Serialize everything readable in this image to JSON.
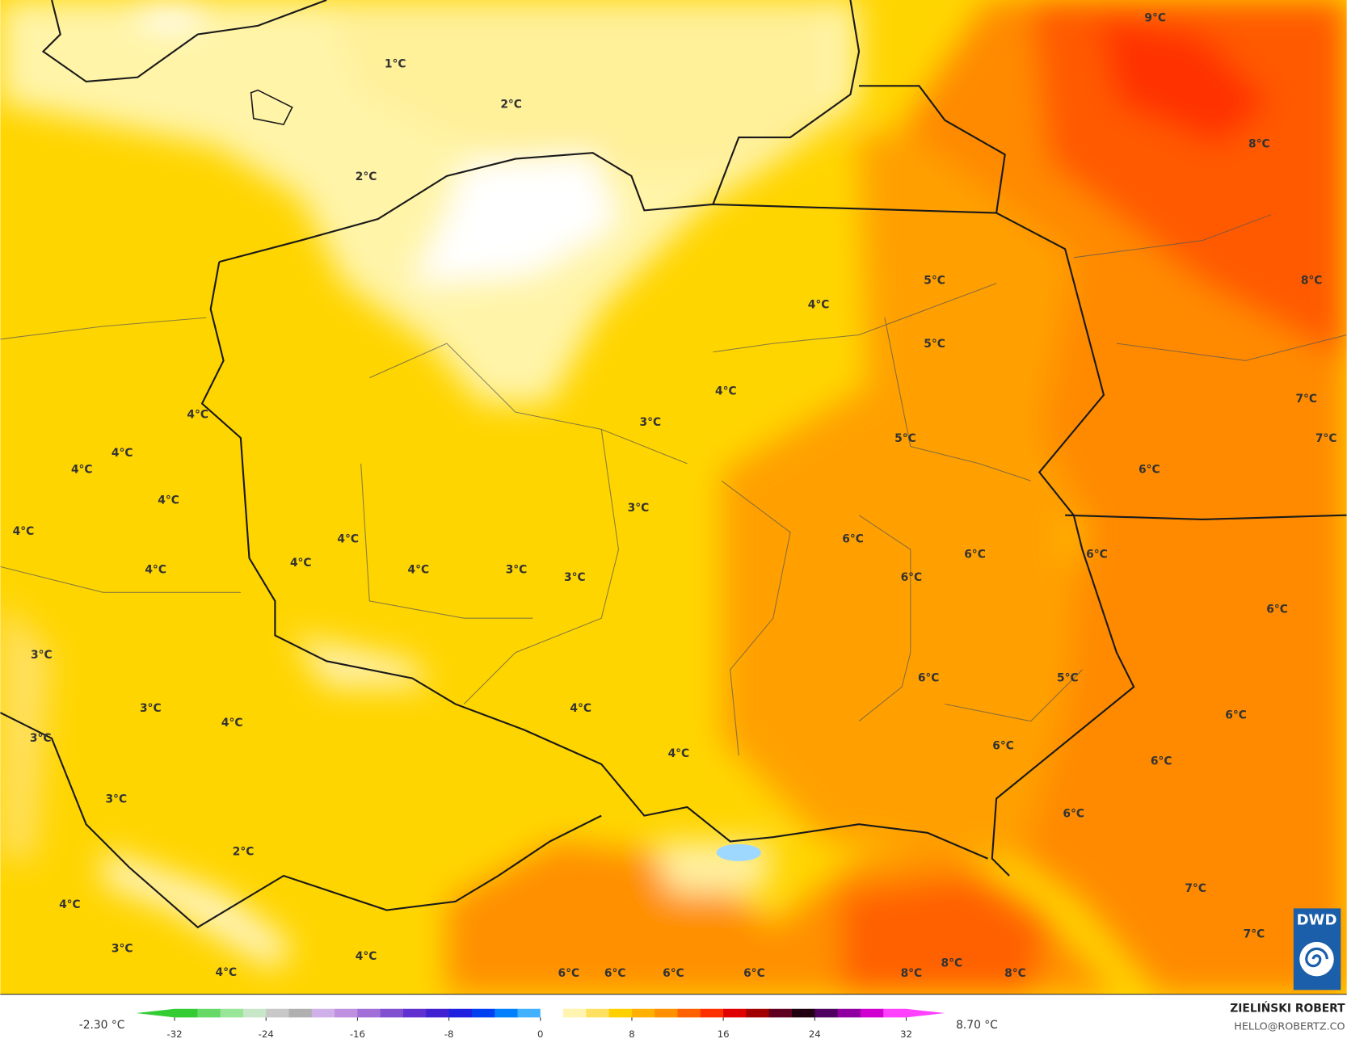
{
  "map": {
    "labels": [
      "1°C",
      "2°C",
      "2°C",
      "5°C",
      "4°C",
      "5°C",
      "4°C",
      "3°C",
      "5°C",
      "4°C",
      "4°C",
      "4°C",
      "4°C",
      "4°C",
      "4°C",
      "4°C",
      "4°C",
      "4°C",
      "3°C",
      "3°C",
      "3°C",
      "6°C",
      "6°C",
      "6°C",
      "9°C",
      "8°C",
      "8°C",
      "7°C",
      "7°C",
      "6°C",
      "6°C",
      "6°C",
      "3°C",
      "3°C",
      "4°C",
      "3°C",
      "4°C",
      "6°C",
      "5°C",
      "6°C",
      "6°C",
      "4°C",
      "6°C",
      "3°C",
      "6°C",
      "2°C",
      "7°C",
      "4°C",
      "7°C",
      "3°C",
      "4°C",
      "4°C",
      "6°C",
      "6°C",
      "6°C",
      "6°C",
      "8°C",
      "8°C",
      "8°C"
    ],
    "logo": "DWD"
  },
  "colorbar": {
    "min_label": "-2.30 °C",
    "max_label": "8.70 °C",
    "ticks": [
      -32,
      -24,
      -16,
      -8,
      0,
      8,
      16,
      24,
      32
    ]
  },
  "credit": {
    "name": "ZIELIŃSKI ROBERT",
    "email": "HELLO@ROBERTZ.CO"
  }
}
